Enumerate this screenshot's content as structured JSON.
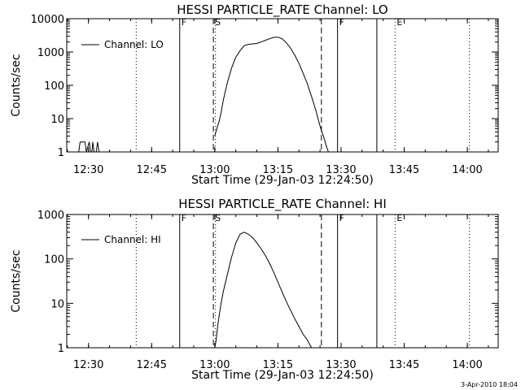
{
  "footer_date": "3-Apr-2010 18:04",
  "chart_data": [
    {
      "type": "line",
      "title": "HESSI PARTICLE_RATE Channel: LO",
      "xlabel": "Start Time (29-Jan-03 12:24:50)",
      "ylabel": "Counts/sec",
      "yscale": "log",
      "ylim": [
        1,
        10000
      ],
      "xlim": [
        "12:24:50",
        "14:07:20"
      ],
      "grid": false,
      "legend": "top-left",
      "x_ticks": [
        "12:30",
        "12:45",
        "13:00",
        "13:15",
        "13:30",
        "13:45",
        "14:00"
      ],
      "y_ticks": [
        "1",
        "10",
        "100",
        "1000",
        "10000"
      ],
      "series": [
        {
          "name": "Channel: LO",
          "segments": [
            {
              "x": [
                "12:27:40",
                "12:28:00",
                "12:29:10",
                "12:29:30",
                "12:30:10",
                "12:30:30",
                "12:30:50",
                "12:31:00",
                "12:31:20",
                "12:31:30",
                "12:31:50",
                "12:32:10",
                "12:32:30"
              ],
              "y": [
                1,
                2,
                2,
                1,
                2,
                1,
                1,
                2,
                1,
                1,
                1,
                2,
                1
              ]
            },
            {
              "x": [
                "13:00:00",
                "13:00:30",
                "13:01:00",
                "13:01:30",
                "13:02:00",
                "13:03:00",
                "13:04:00",
                "13:05:00",
                "13:06:00",
                "13:07:00",
                "13:08:00",
                "13:09:00",
                "13:10:00",
                "13:11:00",
                "13:12:00",
                "13:13:00",
                "13:14:00",
                "13:15:00",
                "13:16:00",
                "13:17:00",
                "13:18:00",
                "13:19:00",
                "13:20:00",
                "13:21:00",
                "13:22:00",
                "13:23:00",
                "13:24:00",
                "13:25:00",
                "13:26:00",
                "13:26:30",
                "13:27:00"
              ],
              "y": [
                3,
                5,
                8,
                15,
                35,
                120,
                330,
                700,
                1100,
                1550,
                1700,
                1750,
                1800,
                2000,
                2250,
                2500,
                2750,
                2800,
                2500,
                1900,
                1300,
                800,
                450,
                230,
                110,
                45,
                18,
                6,
                2.5,
                1.5,
                1
              ]
            }
          ]
        }
      ],
      "vlines": [
        {
          "label": "",
          "x": "12:24:50",
          "style": "dotted"
        },
        {
          "label": "",
          "x": "12:41:20",
          "style": "dotted"
        },
        {
          "label": "F",
          "x": "12:51:40",
          "style": "solid"
        },
        {
          "label": "S",
          "x": "12:59:40",
          "style": "dashed"
        },
        {
          "label": "",
          "x": "13:00:10",
          "style": "dotted"
        },
        {
          "label": "",
          "x": "13:25:20",
          "style": "dashed"
        },
        {
          "label": "F",
          "x": "13:29:10",
          "style": "solid"
        },
        {
          "label": "",
          "x": "13:38:30",
          "style": "solid"
        },
        {
          "label": "E",
          "x": "13:42:50",
          "style": "dotted"
        },
        {
          "label": "",
          "x": "14:00:30",
          "style": "dotted"
        }
      ]
    },
    {
      "type": "line",
      "title": "HESSI PARTICLE_RATE Channel: HI",
      "xlabel": "Start Time (29-Jan-03 12:24:50)",
      "ylabel": "Counts/sec",
      "yscale": "log",
      "ylim": [
        1,
        1000
      ],
      "xlim": [
        "12:24:50",
        "14:07:20"
      ],
      "grid": false,
      "legend": "top-left",
      "x_ticks": [
        "12:30",
        "12:45",
        "13:00",
        "13:15",
        "13:30",
        "13:45",
        "14:00"
      ],
      "y_ticks": [
        "1",
        "10",
        "100",
        "1000"
      ],
      "series": [
        {
          "name": "Channel: HI",
          "segments": [
            {
              "x": [
                "13:00:00",
                "13:00:20",
                "13:00:40",
                "13:01:00",
                "13:01:30",
                "13:02:00",
                "13:03:00",
                "13:04:00",
                "13:05:00",
                "13:06:00",
                "13:07:00",
                "13:08:00",
                "13:09:00",
                "13:10:00",
                "13:11:00",
                "13:12:00",
                "13:13:00",
                "13:14:00",
                "13:15:00",
                "13:16:00",
                "13:17:00",
                "13:18:00",
                "13:19:00",
                "13:20:00",
                "13:21:00",
                "13:22:00",
                "13:22:30",
                "13:23:00"
              ],
              "y": [
                1,
                1.5,
                3,
                5,
                10,
                18,
                45,
                110,
                230,
                360,
                400,
                360,
                300,
                230,
                170,
                120,
                80,
                50,
                30,
                18,
                11,
                7,
                4.5,
                3,
                2,
                1.5,
                1.2,
                1
              ]
            }
          ]
        }
      ],
      "vlines": [
        {
          "label": "",
          "x": "12:24:50",
          "style": "dotted"
        },
        {
          "label": "",
          "x": "12:41:20",
          "style": "dotted"
        },
        {
          "label": "F",
          "x": "12:51:40",
          "style": "solid"
        },
        {
          "label": "S",
          "x": "12:59:40",
          "style": "dashed"
        },
        {
          "label": "",
          "x": "13:00:10",
          "style": "dotted"
        },
        {
          "label": "",
          "x": "13:25:20",
          "style": "dashed"
        },
        {
          "label": "F",
          "x": "13:29:10",
          "style": "solid"
        },
        {
          "label": "",
          "x": "13:38:30",
          "style": "solid"
        },
        {
          "label": "E",
          "x": "13:42:50",
          "style": "dotted"
        },
        {
          "label": "",
          "x": "14:00:30",
          "style": "dotted"
        }
      ]
    }
  ]
}
